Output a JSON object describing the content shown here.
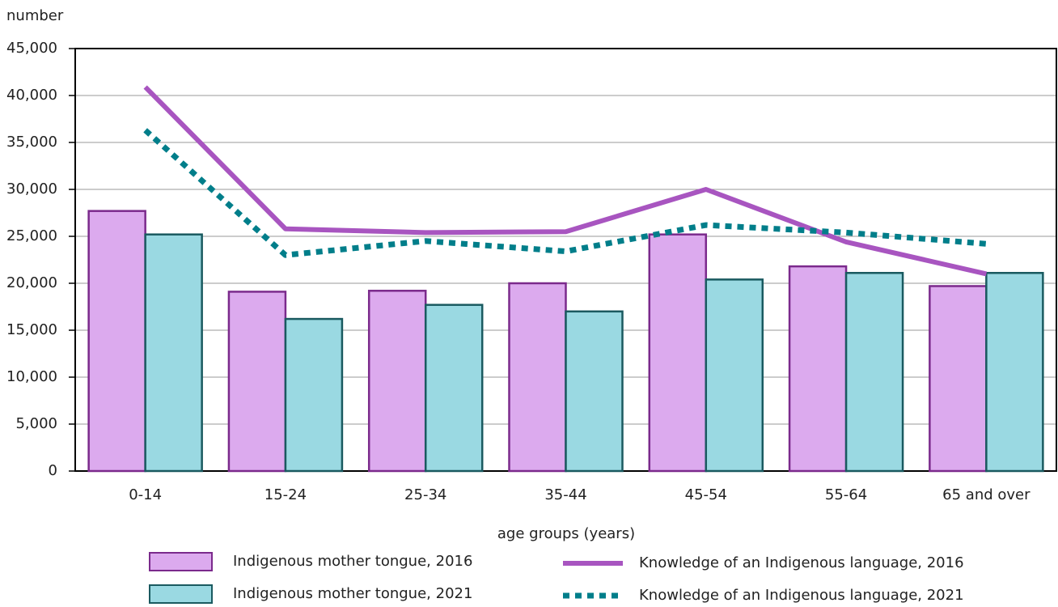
{
  "chart_data": {
    "type": "bar",
    "y_label": "number",
    "x_label": "age groups (years)",
    "categories": [
      "0-14",
      "15-24",
      "25-34",
      "35-44",
      "45-54",
      "55-64",
      "65 and over"
    ],
    "series": [
      {
        "name": "Indigenous mother tongue, 2016",
        "type": "bar",
        "color": "#dcaaee",
        "edge": "#7b2a8c",
        "values": [
          27700,
          19100,
          19200,
          20000,
          25200,
          21800,
          19700
        ]
      },
      {
        "name": "Indigenous mother tongue, 2021",
        "type": "bar",
        "color": "#9ad9e2",
        "edge": "#1a5a60",
        "values": [
          25200,
          16200,
          17700,
          17000,
          20400,
          21100,
          21100
        ]
      },
      {
        "name": "Knowledge of an Indigenous language, 2016",
        "type": "line",
        "style": "solid",
        "color": "#a855c0",
        "values": [
          40900,
          25800,
          25400,
          25500,
          30000,
          24400,
          21000
        ]
      },
      {
        "name": "Knowledge of an Indigenous language, 2021",
        "type": "line",
        "style": "dotted",
        "color": "#007e8a",
        "values": [
          36300,
          23000,
          24500,
          23400,
          26200,
          25400,
          24200
        ]
      }
    ],
    "ylim": [
      0,
      45000
    ],
    "yticks": [
      0,
      {
        "value": 5000,
        "label": "5,000"
      },
      {
        "value": 10000,
        "label": "10,000"
      },
      {
        "value": 15000,
        "label": "15,000"
      },
      {
        "value": 20000,
        "label": "20,000"
      },
      {
        "value": 25000,
        "label": "25,000"
      },
      {
        "value": 30000,
        "label": "30,000"
      },
      {
        "value": 35000,
        "label": "35,000"
      },
      {
        "value": 40000,
        "label": "40,000"
      },
      {
        "value": 45000,
        "label": "45,000"
      }
    ],
    "grid": true,
    "legend": "bottom"
  }
}
